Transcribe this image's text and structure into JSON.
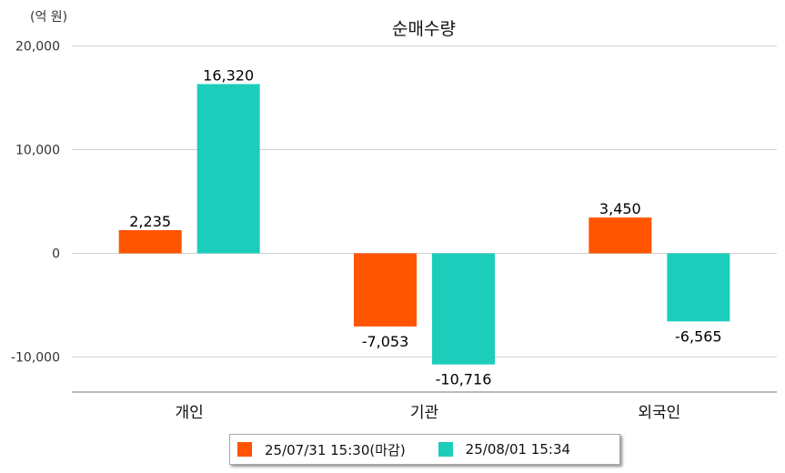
{
  "chart_data": {
    "type": "bar",
    "title": "순매수량",
    "unit_label": "(억 원)",
    "categories": [
      "개인",
      "기관",
      "외국인"
    ],
    "series": [
      {
        "name": "25/07/31 15:30(마감)",
        "color": "#FF5400",
        "values": [
          2235,
          -7053,
          3450
        ]
      },
      {
        "name": "25/08/01 15:34",
        "color": "#1DCDBC",
        "values": [
          16320,
          -10716,
          -6565
        ]
      }
    ],
    "value_labels": [
      [
        "2,235",
        "-7,053",
        "3,450"
      ],
      [
        "16,320",
        "-10,716",
        "-6,565"
      ]
    ],
    "y_ticks": [
      20000,
      10000,
      0,
      -10000
    ],
    "y_tick_labels": [
      "20,000",
      "10,000",
      "0",
      "-10,000"
    ],
    "ylim": [
      -13500,
      20000
    ],
    "grid": true,
    "legend_position": "bottom-center"
  }
}
